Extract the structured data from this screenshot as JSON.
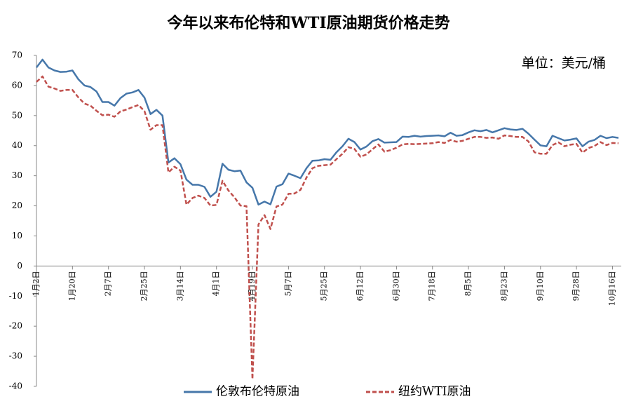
{
  "chart_data": {
    "type": "line",
    "title": "今年以来布伦特和WTI原油期货价格走势",
    "annotation": "单位：美元/桶",
    "categories": [
      "1月2日",
      null,
      null,
      null,
      null,
      null,
      "1月20日",
      null,
      null,
      null,
      null,
      null,
      "2月7日",
      null,
      null,
      null,
      null,
      null,
      "2月25日",
      null,
      null,
      null,
      null,
      null,
      "3月14日",
      null,
      null,
      null,
      null,
      null,
      "4月1日",
      null,
      null,
      null,
      null,
      null,
      "4月19日",
      null,
      null,
      null,
      null,
      null,
      "5月7日",
      null,
      null,
      null,
      null,
      null,
      "5月25日",
      null,
      null,
      null,
      null,
      null,
      "6月12日",
      null,
      null,
      null,
      null,
      null,
      "6月30日",
      null,
      null,
      null,
      null,
      null,
      "7月18日",
      null,
      null,
      null,
      null,
      null,
      "8月5日",
      null,
      null,
      null,
      null,
      null,
      "8月23日",
      null,
      null,
      null,
      null,
      null,
      "9月10日",
      null,
      null,
      null,
      null,
      null,
      "9月28日",
      null,
      null,
      null,
      null,
      null,
      "10月16日",
      null
    ],
    "series": [
      {
        "name": "伦敦布伦特原油",
        "color": "#4677aa",
        "dash": false,
        "values": [
          66,
          68.6,
          66,
          65,
          64.5,
          64.6,
          65,
          62,
          60,
          59.5,
          58,
          54.5,
          54.5,
          53.3,
          55.8,
          57.3,
          57.7,
          58.5,
          56,
          50.5,
          51.9,
          50,
          34.4,
          35.8,
          33.8,
          28.7,
          27,
          27,
          26.3,
          23,
          24.7,
          34,
          32,
          31.5,
          31.7,
          27.8,
          26,
          20.4,
          21.4,
          20.5,
          26.4,
          27.2,
          30.7,
          30,
          29.2,
          32.5,
          35,
          35.1,
          35.5,
          35.3,
          37.8,
          39.8,
          42.3,
          41.2,
          38.7,
          39.7,
          41.5,
          42.2,
          41,
          41.1,
          41.2,
          43,
          42.9,
          43.3,
          43,
          43.2,
          43.3,
          43.4,
          43.1,
          44.3,
          43.3,
          43.5,
          44.4,
          45.1,
          44.8,
          45.2,
          44.4,
          45.1,
          45.8,
          45.4,
          45.2,
          45.6,
          44,
          42,
          40.1,
          39.8,
          43.3,
          42.5,
          41.7,
          42,
          42.4,
          39.8,
          41.3,
          41.9,
          43.3,
          42.5,
          42.9,
          42.6
        ]
      },
      {
        "name": "纽约WTI原油",
        "color": "#c0504d",
        "dash": true,
        "values": [
          61.2,
          63,
          59.6,
          59,
          58.2,
          58.5,
          58.5,
          56,
          54,
          53.3,
          51.6,
          50.1,
          50.3,
          49.6,
          51.4,
          52,
          52.8,
          53.5,
          51.5,
          45.3,
          46.8,
          46.8,
          31.1,
          33,
          31.7,
          20.4,
          22.6,
          23.4,
          22.6,
          20.1,
          20.3,
          28.3,
          25.1,
          22.8,
          20.1,
          19.9,
          -37.6,
          13.8,
          16.9,
          12.3,
          19.8,
          20.4,
          24,
          24.1,
          25.3,
          29.4,
          32.5,
          33.3,
          33.5,
          33.7,
          35.5,
          37.3,
          39.5,
          38.9,
          36.3,
          37.1,
          38.8,
          40.4,
          38,
          38.5,
          39.3,
          40.4,
          40.6,
          40.5,
          40.6,
          40.7,
          40.8,
          41.2,
          40.9,
          41.9,
          41.3,
          41.6,
          42.3,
          42.9,
          42.9,
          42.6,
          42.7,
          42.3,
          43.4,
          43.2,
          42.9,
          42.9,
          41.4,
          37.8,
          37.3,
          37.3,
          40.2,
          41.1,
          39.8,
          40.3,
          40.6,
          37.7,
          39.2,
          39.9,
          41.2,
          40.2,
          40.9,
          40.8
        ]
      }
    ],
    "ylim": [
      -40,
      70
    ],
    "yticks": [
      -40,
      -30,
      -20,
      -10,
      0,
      10,
      20,
      30,
      40,
      50,
      60,
      70
    ],
    "grid": false,
    "legend": "bottom"
  }
}
